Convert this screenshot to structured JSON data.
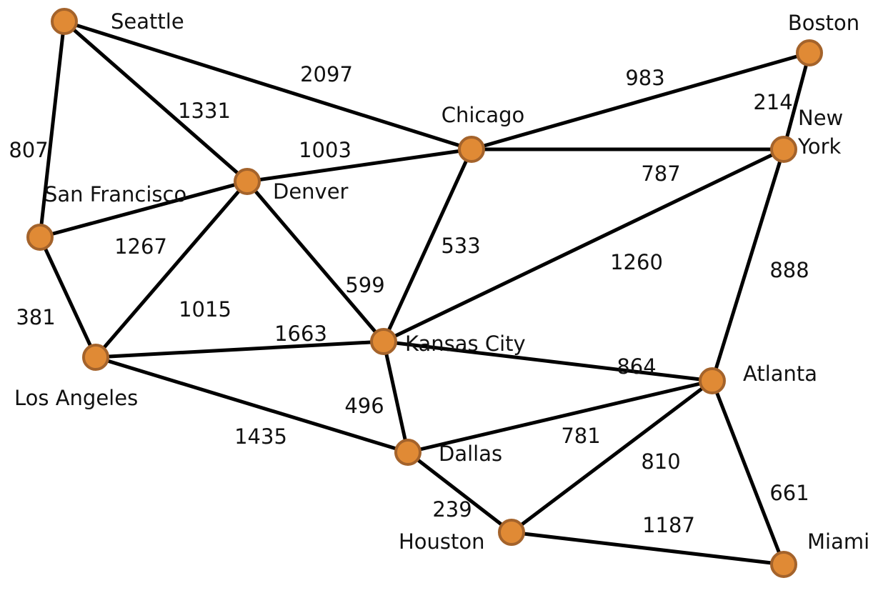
{
  "nodes": [
    {
      "label": "Seattle"
    },
    {
      "label": "Boston"
    },
    {
      "label": "Chicago"
    },
    {
      "label": "New York"
    },
    {
      "label": "Denver"
    },
    {
      "label": "San Francisco"
    },
    {
      "label": "Los Angeles"
    },
    {
      "label": "Kansas City"
    },
    {
      "label": "Atlanta"
    },
    {
      "label": "Dallas"
    },
    {
      "label": "Houston"
    },
    {
      "label": "Miami"
    }
  ],
  "edges": [
    {
      "label": "2097"
    },
    {
      "label": "983"
    },
    {
      "label": "214"
    },
    {
      "label": "807"
    },
    {
      "label": "1331"
    },
    {
      "label": "1003"
    },
    {
      "label": "787"
    },
    {
      "label": "1267"
    },
    {
      "label": "1015"
    },
    {
      "label": "599"
    },
    {
      "label": "533"
    },
    {
      "label": "1260"
    },
    {
      "label": "888"
    },
    {
      "label": "381"
    },
    {
      "label": "1663"
    },
    {
      "label": "864"
    },
    {
      "label": "496"
    },
    {
      "label": "1435"
    },
    {
      "label": "781"
    },
    {
      "label": "810"
    },
    {
      "label": "661"
    },
    {
      "label": "239"
    },
    {
      "label": "1187"
    }
  ]
}
